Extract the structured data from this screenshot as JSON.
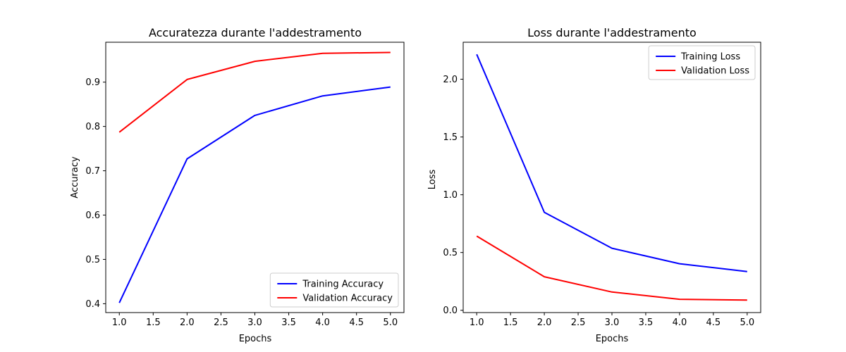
{
  "chart_data": [
    {
      "type": "line",
      "title": "Accuratezza durante l'addestramento",
      "xlabel": "Epochs",
      "ylabel": "Accuracy",
      "x": [
        1,
        2,
        3,
        4,
        5
      ],
      "xlim": [
        0.8,
        5.2
      ],
      "ylim": [
        0.38,
        0.99
      ],
      "xticks": [
        "1.0",
        "1.5",
        "2.0",
        "2.5",
        "3.0",
        "3.5",
        "4.0",
        "4.5",
        "5.0"
      ],
      "yticks": [
        "0.4",
        "0.5",
        "0.6",
        "0.7",
        "0.8",
        "0.9"
      ],
      "grid": false,
      "legend_position": "lower-right",
      "series": [
        {
          "name": "Training Accuracy",
          "color": "#0000ff",
          "values": [
            0.402,
            0.727,
            0.825,
            0.869,
            0.889
          ]
        },
        {
          "name": "Validation Accuracy",
          "color": "#ff0000",
          "values": [
            0.787,
            0.906,
            0.947,
            0.965,
            0.967
          ]
        }
      ]
    },
    {
      "type": "line",
      "title": "Loss durante l'addestramento",
      "xlabel": "Epochs",
      "ylabel": "Loss",
      "x": [
        1,
        2,
        3,
        4,
        5
      ],
      "xlim": [
        0.8,
        5.2
      ],
      "ylim": [
        -0.02,
        2.32
      ],
      "xticks": [
        "1.0",
        "1.5",
        "2.0",
        "2.5",
        "3.0",
        "3.5",
        "4.0",
        "4.5",
        "5.0"
      ],
      "yticks": [
        "0.0",
        "0.5",
        "1.0",
        "1.5",
        "2.0"
      ],
      "grid": false,
      "legend_position": "upper-right",
      "series": [
        {
          "name": "Training Loss",
          "color": "#0000ff",
          "values": [
            2.215,
            0.848,
            0.537,
            0.403,
            0.335
          ]
        },
        {
          "name": "Validation Loss",
          "color": "#ff0000",
          "values": [
            0.642,
            0.29,
            0.158,
            0.095,
            0.088
          ]
        }
      ]
    }
  ]
}
